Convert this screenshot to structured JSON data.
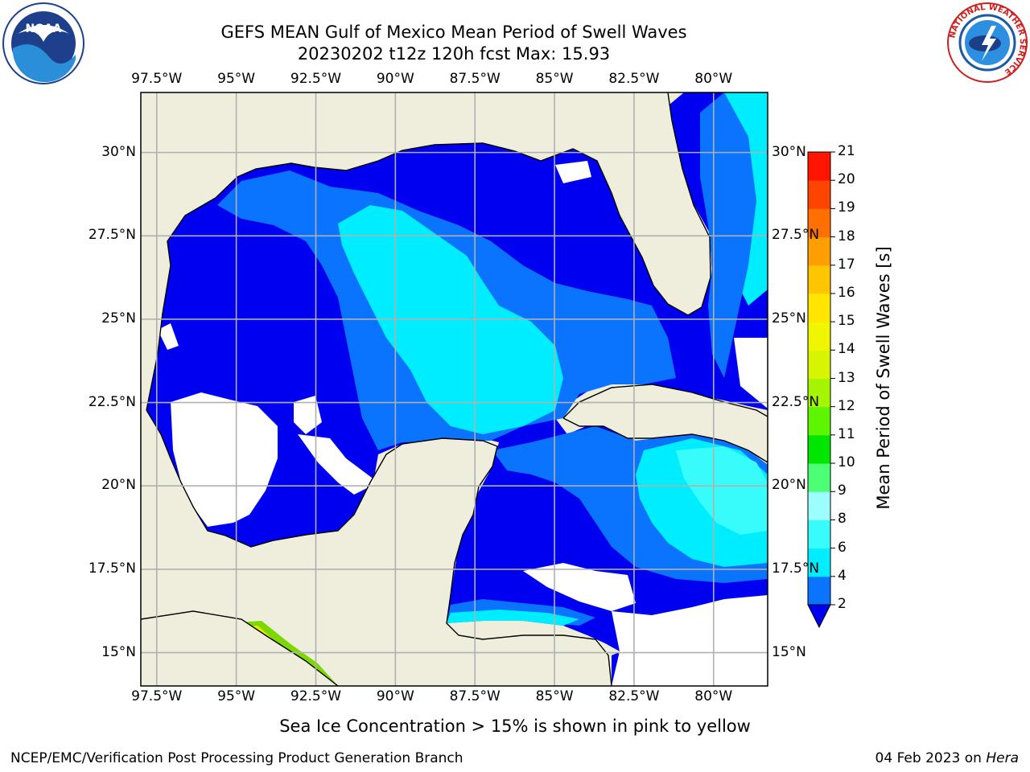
{
  "header": {
    "title_line1": "GEFS MEAN Gulf of Mexico Mean Period of Swell Waves",
    "title_line2": "20230202 t12z 120h fcst   Max: 15.93"
  },
  "logos": {
    "noaa_text": "NOAA",
    "nws_ring_text": "NATIONAL WEATHER SERVICE"
  },
  "map": {
    "lon_labels": [
      "97.5°W",
      "95°W",
      "92.5°W",
      "90°W",
      "87.5°W",
      "85°W",
      "82.5°W",
      "80°W"
    ],
    "lon_values": [
      -97.5,
      -95,
      -92.5,
      -90,
      -87.5,
      -85,
      -82.5,
      -80
    ],
    "lat_labels": [
      "30°N",
      "27.5°N",
      "25°N",
      "22.5°N",
      "20°N",
      "17.5°N",
      "15°N"
    ],
    "lat_values": [
      30,
      27.5,
      25,
      22.5,
      20,
      17.5,
      15
    ],
    "lon_range": [
      -98,
      -78.3
    ],
    "lat_range": [
      14,
      31.8
    ],
    "colors": {
      "land": "#efeedd",
      "coast": "#000000",
      "grid": "#b0b0b0",
      "no_data": "#ffffff"
    }
  },
  "colorbar": {
    "label": "Mean Period of Swell Waves [s]",
    "ticks": [
      "2",
      "4",
      "6",
      "8",
      "9",
      "10",
      "11",
      "12",
      "13",
      "14",
      "15",
      "16",
      "17",
      "18",
      "19",
      "20",
      "21"
    ],
    "colors": [
      "#0a74ff",
      "#00ecff",
      "#38fcfc",
      "#9cfefe",
      "#4dff75",
      "#00e600",
      "#5ef500",
      "#a6f500",
      "#d7f500",
      "#f0f500",
      "#ffe600",
      "#ffc600",
      "#ff9e00",
      "#ff7000",
      "#ff4400",
      "#ff1500"
    ],
    "under_color": "#0000f0"
  },
  "field": {
    "level_colors": {
      "L1": "#0000f0",
      "L2": "#0a74ff",
      "L3": "#00ecff",
      "L4": "#38fcfc",
      "L5": "#9cfefe",
      "green": "#7dd800",
      "yellow": "#e6f000"
    }
  },
  "footnote": "Sea Ice Concentration > 15% is shown in pink to yellow",
  "footer": {
    "left": "NCEP/EMC/Verification Post Processing Product Generation Branch",
    "right_date": "04 Feb 2023 on ",
    "right_host": "Hera"
  }
}
